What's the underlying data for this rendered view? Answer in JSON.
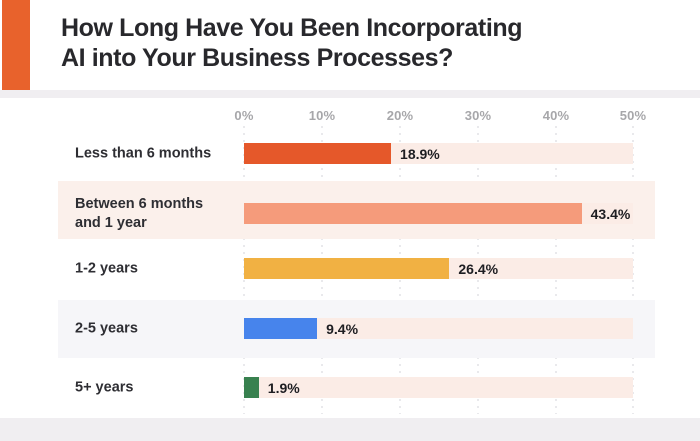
{
  "header": {
    "title_line1": "How Long Have You Been Incorporating",
    "title_line2": "AI into Your Business Processes?",
    "accent_color": "#E8622C"
  },
  "chart_data": {
    "type": "bar",
    "orientation": "horizontal",
    "title": "How Long Have You Been Incorporating AI into Your Business Processes?",
    "categories": [
      "Less than 6 months",
      "Between 6 months and 1 year",
      "1-2 years",
      "2-5 years",
      "5+ years"
    ],
    "values": [
      18.9,
      43.4,
      26.4,
      9.4,
      1.9
    ],
    "value_labels": [
      "18.9%",
      "43.4%",
      "26.4%",
      "9.4%",
      "1.9%"
    ],
    "bar_colors": [
      "#E5582A",
      "#F59B7B",
      "#F1B143",
      "#4784EC",
      "#38814F"
    ],
    "axis_ticks": [
      "0%",
      "10%",
      "20%",
      "30%",
      "40%",
      "50%"
    ],
    "xlabel": "",
    "ylabel": "",
    "xlim": [
      0,
      50
    ],
    "grid": "dotted-vertical",
    "legend": "none",
    "track_color": "#FBECE6",
    "row_band_colors": [
      "none",
      "#FBF0EB",
      "none",
      "#F6F6F9",
      "none"
    ]
  }
}
